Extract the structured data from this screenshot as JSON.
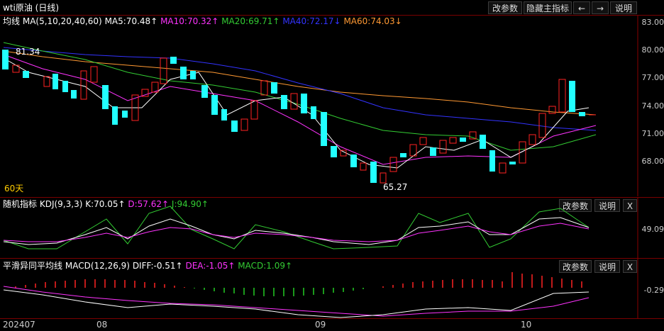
{
  "title": "wti原油 (日线)",
  "toolbar": {
    "params": "改参数",
    "hide": "隐藏主指标",
    "prev": "←",
    "next": "→",
    "help": "说明"
  },
  "main": {
    "indicator_name": "均线",
    "ma_label": "MA(5,10,20,40,60)",
    "ma5": "MA5:70.48↑",
    "ma10": "MA10:70.32↑",
    "ma20": "MA20:69.71↑",
    "ma40": "MA40:72.17↓",
    "ma60": "MA60:74.03↓",
    "high_label": "81.34",
    "low_label": "65.27",
    "days_label": "60天",
    "y_ticks": [
      "83.00",
      "80.00",
      "77.00",
      "74.00",
      "71.00",
      "68.00"
    ],
    "colors": {
      "ma5": "#ffffff",
      "ma10": "#ff33ff",
      "ma20": "#33cc33",
      "ma40": "#3333ff",
      "ma60": "#ff9933",
      "up": "#ff2222",
      "down": "#22ffff"
    }
  },
  "kdj": {
    "title": "随机指标",
    "params": "KDJ(9,3,3)",
    "k": "K:70.05↑",
    "d": "D:57.62↑",
    "j": "J:94.90↑",
    "tick": "49.09",
    "buttons": {
      "params": "改参数",
      "help": "说明",
      "close": "X"
    }
  },
  "macd": {
    "title": "平滑异同平均线",
    "params": "MACD(12,26,9)",
    "diff": "DIFF:-0.51↑",
    "dea": "DEA:-1.05↑",
    "macd": "MACD:1.09↑",
    "tick": "-0.29",
    "buttons": {
      "params": "改参数",
      "help": "说明",
      "close": "X"
    }
  },
  "x_axis": [
    "202407",
    "08",
    "09",
    "10"
  ]
}
